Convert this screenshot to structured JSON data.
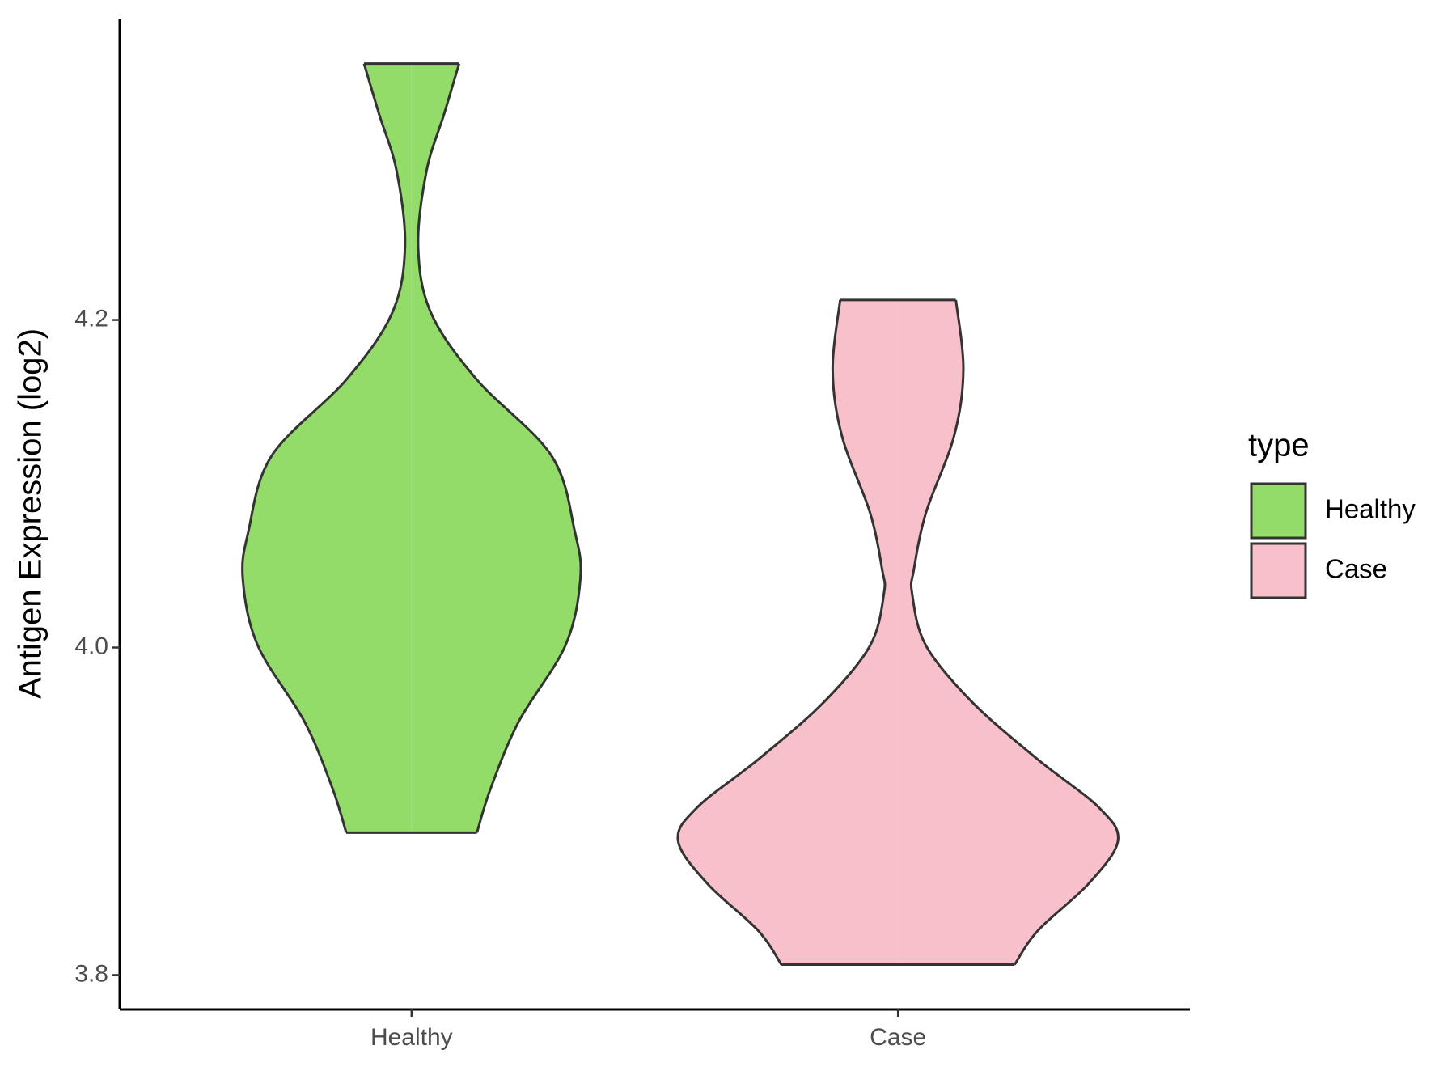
{
  "chart_data": {
    "type": "violin",
    "y_label": "Antigen Expression (log2)",
    "categories": [
      "Healthy",
      "Case"
    ],
    "series": [
      {
        "name": "Healthy",
        "color": "#93dc6a",
        "y": [
          4.3565,
          4.3258,
          4.291,
          4.2446,
          4.2041,
          4.1635,
          4.1171,
          4.0707,
          4.0417,
          4.0012,
          3.9548,
          3.9142,
          3.887
        ],
        "density": [
          0.216,
          0.148,
          0.068,
          0.03,
          0.089,
          0.297,
          0.636,
          0.742,
          0.767,
          0.699,
          0.487,
          0.36,
          0.297
        ]
      },
      {
        "name": "Case",
        "color": "#f7c0cb",
        "y": [
          4.2122,
          4.1693,
          4.1287,
          4.0823,
          4.0475,
          4.033,
          4.0012,
          3.9664,
          3.9316,
          3.9026,
          3.8823,
          3.8562,
          3.8272,
          3.8064
        ],
        "density": [
          0.263,
          0.297,
          0.254,
          0.127,
          0.072,
          0.064,
          0.127,
          0.339,
          0.636,
          0.911,
          1.0,
          0.869,
          0.636,
          0.53
        ]
      }
    ],
    "ylim": [
      3.779,
      4.384
    ],
    "yticks": [
      3.8,
      {
        "value": 4.0,
        "label": "4.0"
      },
      4.2
    ],
    "legend_title": "type",
    "legend_position": "right",
    "grid": false
  }
}
